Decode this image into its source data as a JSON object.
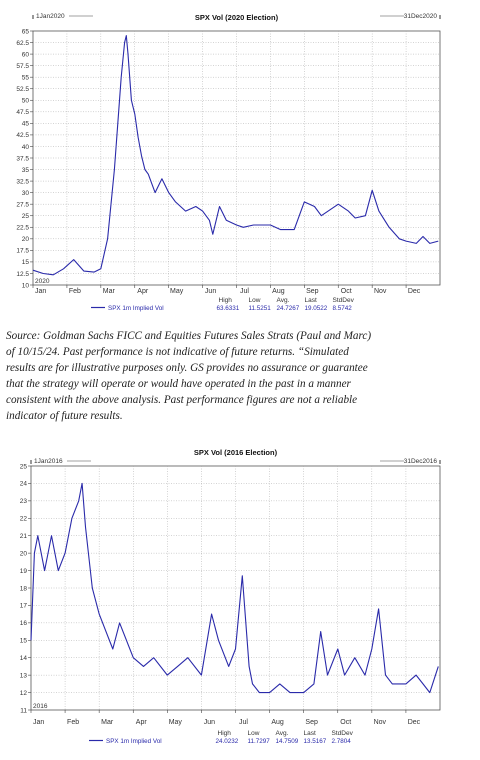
{
  "source_note": [
    "Source: Goldman Sachs FICC and Equities Futures Sales Strats (Paul and Marc)",
    "of 10/15/24. Past performance is not indicative of future returns. “Simulated",
    "results are for illustrative purposes only. GS provides no assurance or guarantee",
    "that the strategy will operate or would have operated in the past in a manner",
    "consistent with the above analysis. Past performance figures are not a reliable",
    "indicator of future results."
  ],
  "chart_data": [
    {
      "type": "line",
      "title": "SPX Vol (2020 Election)",
      "start_label": "1Jan2020",
      "end_label": "31Dec2020",
      "year_label": "2020",
      "x_tick_labels": [
        "Jan",
        "Feb",
        "Mar",
        "Apr",
        "May",
        "Jun",
        "Jul",
        "Aug",
        "Sep",
        "Oct",
        "Nov",
        "Dec"
      ],
      "y_ticks": [
        "10",
        "12.5",
        "15",
        "17.5",
        "20",
        "22.5",
        "25",
        "27.5",
        "30",
        "32.5",
        "35",
        "37.5",
        "40",
        "42.5",
        "45",
        "47.5",
        "50",
        "52.5",
        "55",
        "57.5",
        "60",
        "62.5",
        "65"
      ],
      "ylim": [
        10,
        65
      ],
      "grid": true,
      "series": [
        {
          "name": "SPX 1m Implied Vol",
          "color": "#2a2aaa",
          "x": [
            0,
            0.3,
            0.6,
            0.9,
            1.2,
            1.5,
            1.8,
            2,
            2.2,
            2.4,
            2.5,
            2.6,
            2.7,
            2.75,
            2.8,
            2.9,
            3,
            3.1,
            3.2,
            3.3,
            3.4,
            3.5,
            3.6,
            3.8,
            4,
            4.2,
            4.5,
            4.8,
            5,
            5.2,
            5.3,
            5.5,
            5.7,
            6,
            6.2,
            6.5,
            7,
            7.3,
            7.5,
            7.7,
            8,
            8.3,
            8.5,
            9,
            9.3,
            9.5,
            9.8,
            10,
            10.2,
            10.5,
            10.8,
            11,
            11.3,
            11.5,
            11.7,
            11.95
          ],
          "values": [
            13.2,
            12.5,
            12.2,
            13.5,
            15.5,
            13,
            12.8,
            13.5,
            20,
            35,
            45,
            55,
            62.5,
            64,
            60,
            50,
            47,
            42,
            38,
            35,
            34,
            32,
            30,
            33,
            30,
            28,
            26,
            27,
            26,
            24,
            21,
            27,
            24,
            23,
            22.5,
            23,
            23,
            22,
            22,
            22,
            28,
            27,
            25,
            27.5,
            26,
            24.5,
            25,
            30.5,
            26,
            22.5,
            20,
            19.5,
            19,
            20.5,
            19,
            19.5
          ],
          "stats": {
            "high": "63.6331",
            "low": "11.5251",
            "avg": "24.7267",
            "last": "19.0522",
            "stddev": "8.5742"
          }
        }
      ],
      "stats_headers": [
        "High",
        "Low",
        "Avg.",
        "Last",
        "StdDev"
      ]
    },
    {
      "type": "line",
      "title": "SPX Vol (2016 Election)",
      "start_label": "1Jan2016",
      "end_label": "31Dec2016",
      "year_label": "2016",
      "x_tick_labels": [
        "Jan",
        "Feb",
        "Mar",
        "Apr",
        "May",
        "Jun",
        "Jul",
        "Aug",
        "Sep",
        "Oct",
        "Nov",
        "Dec"
      ],
      "y_ticks": [
        "11",
        "12",
        "13",
        "14",
        "15",
        "16",
        "17",
        "18",
        "19",
        "20",
        "21",
        "22",
        "23",
        "24",
        "25"
      ],
      "ylim": [
        11,
        25
      ],
      "grid": true,
      "series": [
        {
          "name": "SPX 1m Implied Vol",
          "color": "#2a2aaa",
          "x": [
            0,
            0.1,
            0.2,
            0.4,
            0.6,
            0.8,
            1,
            1.2,
            1.4,
            1.5,
            1.6,
            1.8,
            2,
            2.2,
            2.4,
            2.6,
            3,
            3.3,
            3.6,
            4,
            4.3,
            4.6,
            5,
            5.3,
            5.5,
            5.8,
            6,
            6.2,
            6.4,
            6.5,
            6.7,
            7,
            7.3,
            7.6,
            8,
            8.3,
            8.5,
            8.7,
            9,
            9.2,
            9.5,
            9.8,
            10,
            10.2,
            10.4,
            10.6,
            11,
            11.3,
            11.5,
            11.7,
            11.95
          ],
          "values": [
            15,
            20,
            21,
            19,
            21,
            19,
            20,
            22,
            23,
            24,
            21.5,
            18,
            16.5,
            15.5,
            14.5,
            16,
            14,
            13.5,
            14,
            13,
            13.5,
            14,
            13,
            16.5,
            15,
            13.5,
            14.5,
            18.7,
            13.5,
            12.5,
            12,
            12,
            12.5,
            12,
            12,
            12.5,
            15.5,
            13,
            14.5,
            13,
            14,
            13,
            14.5,
            16.8,
            13,
            12.5,
            12.5,
            13,
            12.5,
            12,
            13.5
          ],
          "stats": {
            "high": "24.0232",
            "low": "11.7297",
            "avg": "14.7509",
            "last": "13.5167",
            "stddev": "2.7804"
          }
        }
      ],
      "stats_headers": [
        "High",
        "Low",
        "Avg.",
        "Last",
        "StdDev"
      ]
    }
  ]
}
